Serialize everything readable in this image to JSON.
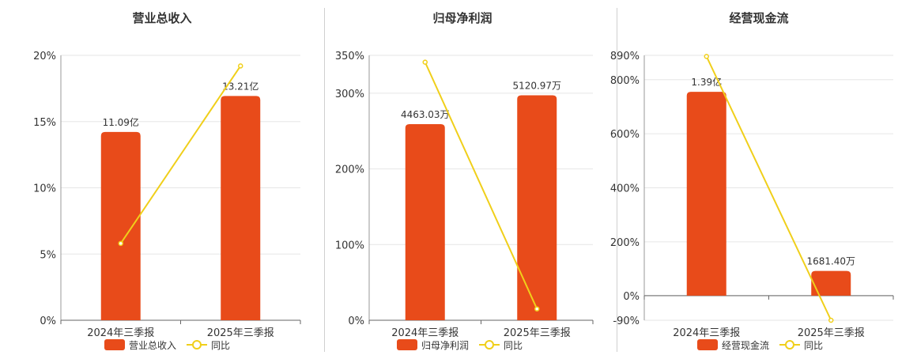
{
  "colors": {
    "bar": "#E84B1A",
    "line": "#F0CF1A",
    "axis": "#666666",
    "grid": "#e6e6e6",
    "text": "#333333"
  },
  "chart_data": [
    {
      "type": "bar",
      "title": "营业总收入",
      "categories": [
        "2024年三季报",
        "2025年三季报"
      ],
      "series": [
        {
          "name": "营业总收入",
          "kind": "bar",
          "values": [
            11.09,
            13.21
          ],
          "labels": [
            "11.09亿",
            "13.21亿"
          ],
          "axis": "hidden",
          "ylim": [
            0,
            15.6
          ]
        },
        {
          "name": "同比",
          "kind": "line",
          "values": [
            5.8,
            19.2
          ],
          "axis": "left"
        }
      ],
      "y_ticks": [
        0,
        5,
        10,
        15,
        20
      ],
      "y_tick_labels": [
        "0%",
        "5%",
        "10%",
        "15%",
        "20%"
      ],
      "ylim": [
        0,
        20
      ],
      "legend": "bottom"
    },
    {
      "type": "bar",
      "title": "归母净利润",
      "categories": [
        "2024年三季报",
        "2025年三季报"
      ],
      "series": [
        {
          "name": "归母净利润",
          "kind": "bar",
          "values": [
            4463.03,
            5120.97
          ],
          "labels": [
            "4463.03万",
            "5120.97万"
          ],
          "axis": "hidden",
          "ylim": [
            0,
            6030
          ]
        },
        {
          "name": "同比",
          "kind": "line",
          "values": [
            341,
            15
          ],
          "axis": "left"
        }
      ],
      "y_ticks": [
        0,
        100,
        200,
        300,
        350
      ],
      "y_tick_labels": [
        "0%",
        "100%",
        "200%",
        "300%",
        "350%"
      ],
      "ylim": [
        0,
        350
      ],
      "legend": "bottom"
    },
    {
      "type": "bar",
      "title": "经营现金流",
      "categories": [
        "2024年三季报",
        "2025年三季报"
      ],
      "series": [
        {
          "name": "经营现金流",
          "kind": "bar",
          "values": [
            1.39,
            0.16814
          ],
          "labels": [
            "1.39亿",
            "1681.40万"
          ],
          "axis": "hidden",
          "ylim": [
            -0.168,
            1.639
          ]
        },
        {
          "name": "同比",
          "kind": "line",
          "values": [
            886,
            -90
          ],
          "axis": "left"
        }
      ],
      "y_ticks": [
        -90,
        0,
        200,
        400,
        600,
        800,
        890
      ],
      "y_tick_labels": [
        "-90%",
        "0%",
        "200%",
        "400%",
        "600%",
        "800%",
        "890%"
      ],
      "ylim": [
        -90,
        890
      ],
      "legend": "bottom"
    }
  ]
}
